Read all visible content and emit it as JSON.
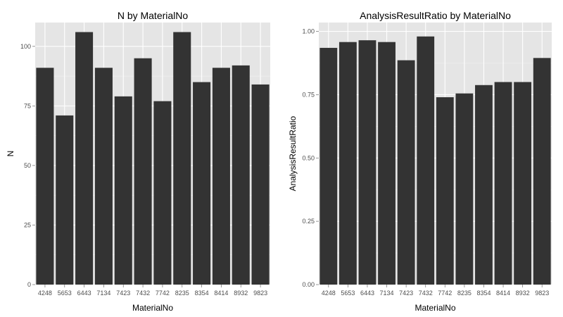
{
  "chart_data": [
    {
      "type": "bar",
      "title": "N by MaterialNo",
      "xlabel": "MaterialNo",
      "ylabel": "N",
      "categories": [
        "4248",
        "5653",
        "6443",
        "7134",
        "7423",
        "7432",
        "7742",
        "8235",
        "8354",
        "8414",
        "8932",
        "9823"
      ],
      "values": [
        91,
        71,
        106,
        91,
        79,
        95,
        77,
        106,
        85,
        91,
        92,
        84
      ],
      "ylim": [
        0,
        110
      ],
      "yticks": [
        0,
        25,
        50,
        75,
        100
      ],
      "ytick_labels": [
        "0",
        "25",
        "50",
        "75",
        "100"
      ],
      "grid": true,
      "bar_color": "#333333",
      "panel_bg": "#e5e5e5",
      "grid_color": "#ffffff"
    },
    {
      "type": "bar",
      "title": "AnalysisResultRatio by MaterialNo",
      "xlabel": "MaterialNo",
      "ylabel": "AnalysisResultRatio",
      "categories": [
        "4248",
        "5653",
        "6443",
        "7134",
        "7423",
        "7432",
        "7742",
        "8235",
        "8354",
        "8414",
        "8932",
        "9823"
      ],
      "values": [
        0.935,
        0.958,
        0.965,
        0.958,
        0.886,
        0.98,
        0.74,
        0.755,
        0.788,
        0.8,
        0.8,
        0.895
      ],
      "ylim": [
        0,
        1.035
      ],
      "yticks": [
        0,
        0.25,
        0.5,
        0.75,
        1.0
      ],
      "ytick_labels": [
        "0.00",
        "0.25",
        "0.50",
        "0.75",
        "1.00"
      ],
      "grid": true,
      "bar_color": "#333333",
      "panel_bg": "#e5e5e5",
      "grid_color": "#ffffff"
    }
  ]
}
